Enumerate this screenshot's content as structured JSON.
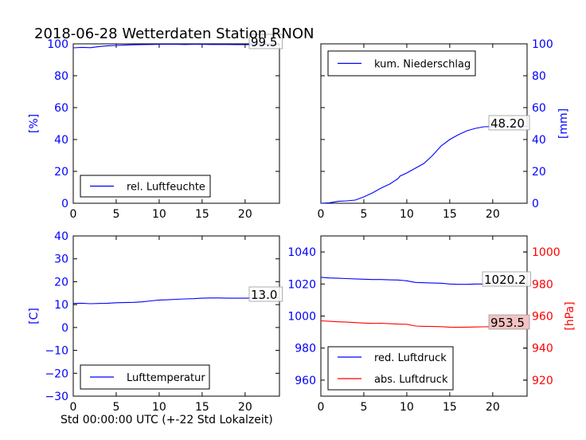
{
  "title": "2018-06-28 Wetterdaten Station RNON",
  "xlabel": "Std 00:00:00 UTC (+-22 Std Lokalzeit)",
  "colors": {
    "blue": "#0000ff",
    "red": "#ff0000",
    "axis": "#000000",
    "lastbox_red": "#f4c2c2"
  },
  "chart_data": [
    {
      "type": "line",
      "panel": "top-left",
      "ylabel": "[%]",
      "xlim": [
        0,
        24
      ],
      "ylim": [
        0,
        100
      ],
      "xticks": [
        0,
        5,
        10,
        15,
        20
      ],
      "yticks": [
        0,
        20,
        40,
        60,
        80,
        100
      ],
      "yaxis_side": "left",
      "legend_position": "lower-left",
      "series": [
        {
          "name": "rel. Luftfeuchte",
          "color": "#0000ff",
          "last_value": "99.5",
          "x": [
            0,
            1,
            2,
            3,
            4,
            5,
            6,
            7,
            8,
            9,
            10,
            11,
            12,
            13,
            14,
            15,
            16,
            17,
            18,
            19,
            20,
            21,
            22,
            23,
            24
          ],
          "y": [
            97.5,
            97.8,
            97.6,
            98.3,
            98.8,
            99.0,
            99.2,
            99.4,
            99.5,
            99.6,
            99.7,
            99.7,
            99.7,
            99.6,
            99.7,
            99.7,
            99.6,
            99.6,
            99.6,
            99.5,
            99.5,
            99.5,
            99.5,
            99.5,
            99.5
          ]
        }
      ]
    },
    {
      "type": "line",
      "panel": "top-right",
      "ylabel": "[mm]",
      "xlim": [
        0,
        24
      ],
      "ylim": [
        0,
        100
      ],
      "xticks": [
        0,
        5,
        10,
        15,
        20
      ],
      "yticks": [
        0,
        20,
        40,
        60,
        80,
        100
      ],
      "yaxis_side": "right",
      "legend_position": "upper-left",
      "series": [
        {
          "name": "kum. Niederschlag",
          "color": "#0000ff",
          "last_value": "48.20",
          "x": [
            0,
            1,
            2,
            3,
            4,
            5,
            6,
            7,
            8,
            9,
            9.2,
            10,
            11,
            12,
            13,
            14,
            15,
            16,
            17,
            18,
            19,
            20,
            21,
            22,
            23,
            24
          ],
          "y": [
            0,
            0.3,
            1.2,
            1.5,
            2.0,
            4.0,
            6.5,
            9.5,
            12.0,
            15.5,
            17.0,
            19.0,
            22.0,
            25.0,
            30.0,
            36.0,
            40.0,
            43.0,
            45.5,
            47.0,
            48.0,
            48.1,
            48.2,
            48.2,
            48.2,
            48.2
          ]
        }
      ]
    },
    {
      "type": "line",
      "panel": "bottom-left",
      "ylabel": "[C]",
      "xlim": [
        0,
        24
      ],
      "ylim": [
        -30,
        40
      ],
      "xticks": [
        0,
        5,
        10,
        15,
        20
      ],
      "yticks": [
        -30,
        -20,
        -10,
        0,
        10,
        20,
        30,
        40
      ],
      "yaxis_side": "left",
      "legend_position": "lower-left",
      "series": [
        {
          "name": "Lufttemperatur",
          "color": "#0000ff",
          "last_value": "13.0",
          "x": [
            0,
            1,
            2,
            3,
            4,
            5,
            6,
            7,
            8,
            9,
            10,
            11,
            12,
            13,
            14,
            15,
            16,
            17,
            18,
            19,
            20,
            21,
            22,
            23,
            24
          ],
          "y": [
            10.5,
            10.6,
            10.4,
            10.5,
            10.6,
            10.8,
            10.9,
            11.0,
            11.2,
            11.6,
            12.0,
            12.1,
            12.3,
            12.5,
            12.6,
            12.8,
            12.9,
            12.9,
            12.8,
            12.8,
            12.8,
            12.9,
            12.9,
            13.0,
            13.0
          ]
        }
      ]
    },
    {
      "type": "line",
      "panel": "bottom-right",
      "xlim": [
        0,
        24
      ],
      "ylim": [
        950,
        1050
      ],
      "xticks": [
        0,
        5,
        10,
        15,
        20
      ],
      "yticks": [
        960,
        980,
        1000,
        1020,
        1040
      ],
      "yaxis_side": "left",
      "y2label": "[hPa]",
      "y2lim": [
        910,
        1010
      ],
      "y2ticks": [
        920,
        940,
        960,
        980,
        1000
      ],
      "legend_position": "lower-left",
      "series": [
        {
          "name": "red. Luftdruck",
          "color": "#0000ff",
          "axis": "left",
          "last_value": "1020.2",
          "x": [
            0,
            1,
            2,
            3,
            4,
            5,
            6,
            7,
            8,
            9,
            10,
            11,
            12,
            13,
            14,
            15,
            16,
            17,
            18,
            19,
            20,
            21,
            22,
            23,
            24
          ],
          "y": [
            1024.2,
            1023.8,
            1023.6,
            1023.4,
            1023.2,
            1023.0,
            1022.8,
            1022.8,
            1022.6,
            1022.5,
            1022.0,
            1021.0,
            1020.8,
            1020.6,
            1020.5,
            1020.0,
            1019.8,
            1019.8,
            1020.0,
            1020.0,
            1020.2,
            1020.2,
            1020.2,
            1020.2,
            1020.2
          ]
        },
        {
          "name": "abs. Luftdruck",
          "color": "#ff0000",
          "axis": "right",
          "last_value": "953.5",
          "x": [
            0,
            1,
            2,
            3,
            4,
            5,
            6,
            7,
            8,
            9,
            10,
            11,
            12,
            13,
            14,
            15,
            16,
            17,
            18,
            19,
            20,
            21,
            22,
            23,
            24
          ],
          "y": [
            957.0,
            956.7,
            956.4,
            956.2,
            955.9,
            955.6,
            955.4,
            955.5,
            955.2,
            955.0,
            954.9,
            953.8,
            953.6,
            953.5,
            953.4,
            953.1,
            953.0,
            953.1,
            953.2,
            953.3,
            953.4,
            953.5,
            953.5,
            953.5,
            953.5
          ]
        }
      ]
    }
  ]
}
